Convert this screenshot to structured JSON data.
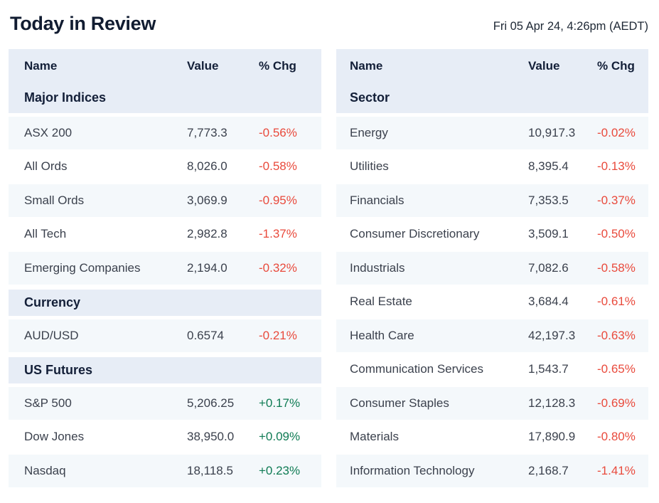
{
  "header": {
    "title": "Today in Review",
    "timestamp": "Fri 05 Apr 24, 4:26pm (AEDT)"
  },
  "columns": {
    "name": "Name",
    "value": "Value",
    "change": "% Chg"
  },
  "colors": {
    "negative": "#e94a3c",
    "positive": "#0f7b54",
    "band_bg": "#e7edf6",
    "row_tint_bg": "#f4f8fb",
    "heading_text": "#131f38",
    "body_text": "#3b414d"
  },
  "chart_data": [
    {
      "type": "table",
      "title": "Market summary",
      "columns": [
        "Name",
        "Value",
        "% Chg"
      ],
      "sections": [
        {
          "label": "Major Indices",
          "rows": [
            {
              "name": "ASX 200",
              "value": "7,773.3",
              "change": "-0.56%",
              "direction": "negative"
            },
            {
              "name": "All Ords",
              "value": "8,026.0",
              "change": "-0.58%",
              "direction": "negative"
            },
            {
              "name": "Small Ords",
              "value": "3,069.9",
              "change": "-0.95%",
              "direction": "negative"
            },
            {
              "name": "All Tech",
              "value": "2,982.8",
              "change": "-1.37%",
              "direction": "negative"
            },
            {
              "name": "Emerging Companies",
              "value": "2,194.0",
              "change": "-0.32%",
              "direction": "negative"
            }
          ]
        },
        {
          "label": "Currency",
          "rows": [
            {
              "name": "AUD/USD",
              "value": "0.6574",
              "change": "-0.21%",
              "direction": "negative"
            }
          ]
        },
        {
          "label": "US Futures",
          "rows": [
            {
              "name": "S&P 500",
              "value": "5,206.25",
              "change": "+0.17%",
              "direction": "positive"
            },
            {
              "name": "Dow Jones",
              "value": "38,950.0",
              "change": "+0.09%",
              "direction": "positive"
            },
            {
              "name": "Nasdaq",
              "value": "18,118.5",
              "change": "+0.23%",
              "direction": "positive"
            }
          ]
        }
      ]
    },
    {
      "type": "table",
      "title": "Sector summary",
      "columns": [
        "Name",
        "Value",
        "% Chg"
      ],
      "sections": [
        {
          "label": "Sector",
          "rows": [
            {
              "name": "Energy",
              "value": "10,917.3",
              "change": "-0.02%",
              "direction": "negative"
            },
            {
              "name": "Utilities",
              "value": "8,395.4",
              "change": "-0.13%",
              "direction": "negative"
            },
            {
              "name": "Financials",
              "value": "7,353.5",
              "change": "-0.37%",
              "direction": "negative"
            },
            {
              "name": "Consumer Discretionary",
              "value": "3,509.1",
              "change": "-0.50%",
              "direction": "negative"
            },
            {
              "name": "Industrials",
              "value": "7,082.6",
              "change": "-0.58%",
              "direction": "negative"
            },
            {
              "name": "Real Estate",
              "value": "3,684.4",
              "change": "-0.61%",
              "direction": "negative"
            },
            {
              "name": "Health Care",
              "value": "42,197.3",
              "change": "-0.63%",
              "direction": "negative"
            },
            {
              "name": "Communication Services",
              "value": "1,543.7",
              "change": "-0.65%",
              "direction": "negative"
            },
            {
              "name": "Consumer Staples",
              "value": "12,128.3",
              "change": "-0.69%",
              "direction": "negative"
            },
            {
              "name": "Materials",
              "value": "17,890.9",
              "change": "-0.80%",
              "direction": "negative"
            },
            {
              "name": "Information Technology",
              "value": "2,168.7",
              "change": "-1.41%",
              "direction": "negative"
            }
          ]
        }
      ]
    }
  ]
}
